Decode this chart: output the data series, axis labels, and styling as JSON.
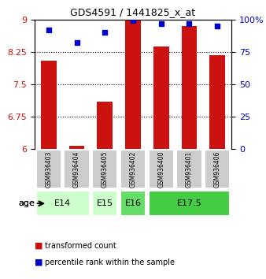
{
  "title": "GDS4591 / 1441825_x_at",
  "samples": [
    "GSM936403",
    "GSM936404",
    "GSM936405",
    "GSM936402",
    "GSM936400",
    "GSM936401",
    "GSM936406"
  ],
  "transformed_count": [
    8.05,
    6.07,
    7.1,
    9.0,
    8.38,
    8.85,
    8.18
  ],
  "percentile_rank": [
    92,
    82,
    90,
    99,
    97,
    97,
    95
  ],
  "ages": [
    {
      "label": "E14",
      "samples": [
        0,
        1
      ],
      "color": "#ccffcc"
    },
    {
      "label": "E15",
      "samples": [
        2
      ],
      "color": "#ccffcc"
    },
    {
      "label": "E16",
      "samples": [
        3
      ],
      "color": "#66dd66"
    },
    {
      "label": "E17.5",
      "samples": [
        4,
        5,
        6
      ],
      "color": "#44cc44"
    }
  ],
  "ylim_left": [
    6,
    9
  ],
  "ylim_right": [
    0,
    100
  ],
  "yticks_left": [
    6,
    6.75,
    7.5,
    8.25,
    9
  ],
  "yticks_right": [
    0,
    25,
    50,
    75,
    100
  ],
  "ytick_labels_right": [
    "0",
    "25",
    "50",
    "75",
    "100%"
  ],
  "bar_color": "#cc1111",
  "scatter_color": "#0000cc",
  "grid_color": "#000000",
  "sample_box_color": "#cccccc",
  "age_label": "age"
}
